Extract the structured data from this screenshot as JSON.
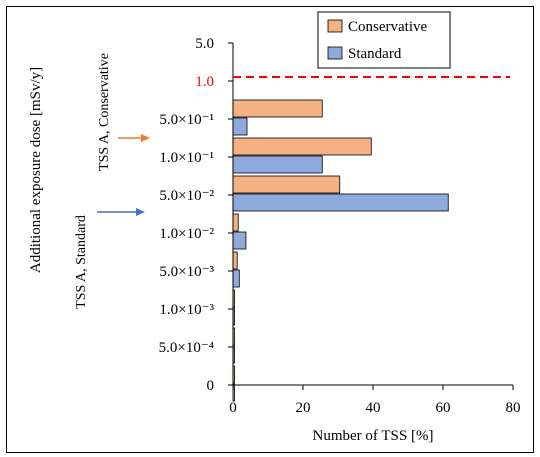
{
  "chart_data": {
    "type": "bar",
    "orientation": "horizontal",
    "categories": [
      "0",
      "5.0×10⁻⁴",
      "1.0×10⁻³",
      "5.0×10⁻³",
      "1.0×10⁻²",
      "5.0×10⁻²",
      "1.0×10⁻¹",
      "5.0×10⁻¹",
      "1.0",
      "5.0"
    ],
    "series": [
      {
        "name": "Conservative",
        "color": "#F4B183",
        "values": [
          0.3,
          0.3,
          0.3,
          1.2,
          1.5,
          30.5,
          39.5,
          25.5,
          0,
          0
        ]
      },
      {
        "name": "Standard",
        "color": "#8FAADC",
        "values": [
          0.3,
          0.3,
          0.3,
          1.8,
          3.7,
          61.5,
          25.5,
          4.0,
          0,
          0
        ]
      }
    ],
    "xlabel": "Number of TSS [%]",
    "ylabel": "Additional exposure dose [mSv/y]",
    "xticks": [
      "0",
      "20",
      "40",
      "60",
      "80"
    ],
    "xlim": [
      0,
      80
    ],
    "limit_line": {
      "value": "1.0",
      "color": "#FF0000",
      "style": "dashed"
    },
    "annotations": [
      {
        "text": "TSS A, Conservative",
        "color": "#ED7D31"
      },
      {
        "text": "TSS A, Standard",
        "color": "#4472C4"
      }
    ],
    "legend_position": "top-right",
    "grid": false
  }
}
